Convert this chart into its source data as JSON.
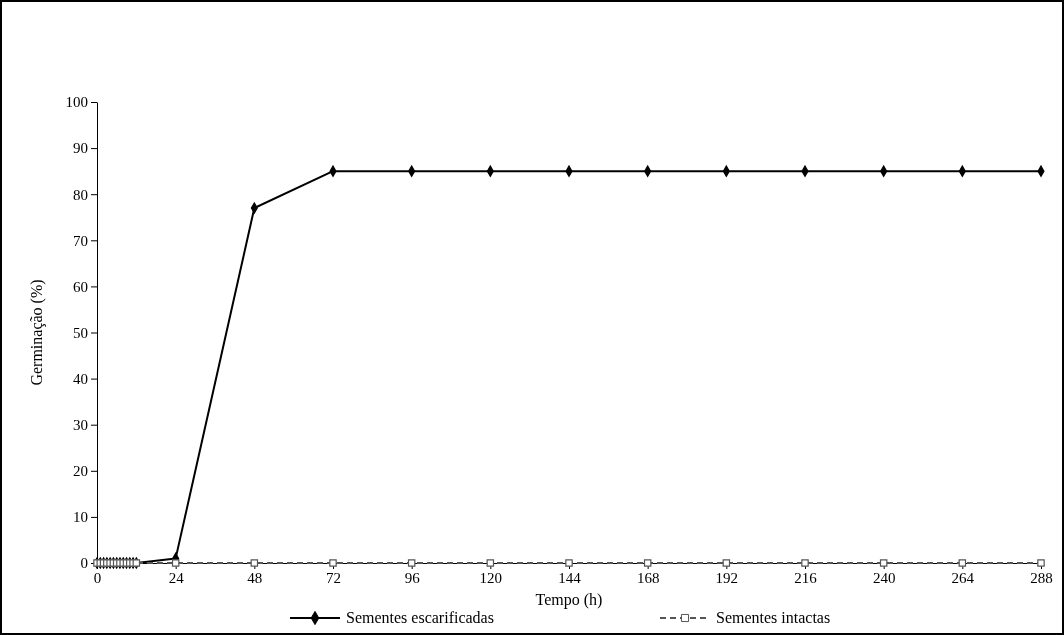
{
  "chart_data": {
    "type": "line",
    "xlabel": "Tempo (h)",
    "ylabel": "Germinação (%)",
    "xlim": [
      0,
      288
    ],
    "xticks": [
      0,
      24,
      48,
      72,
      96,
      120,
      144,
      168,
      192,
      216,
      240,
      264,
      288
    ],
    "ylim": [
      0,
      100
    ],
    "yticks": [
      0,
      10,
      20,
      30,
      40,
      50,
      60,
      70,
      80,
      90,
      100
    ],
    "grid": false,
    "legend": "bottom",
    "series": [
      {
        "name": "Sementes escarificadas",
        "color": "#000000",
        "marker": "diamond",
        "line_style": "solid",
        "x": [
          0,
          1,
          2,
          3,
          4,
          5,
          6,
          7,
          8,
          9,
          10,
          11,
          12,
          24,
          48,
          72,
          96,
          120,
          144,
          168,
          192,
          216,
          240,
          264,
          288
        ],
        "values": [
          0,
          0,
          0,
          0,
          0,
          0,
          0,
          0,
          0,
          0,
          0,
          0,
          0,
          1,
          77,
          85,
          85,
          85,
          85,
          85,
          85,
          85,
          85,
          85,
          85
        ]
      },
      {
        "name": "Sementes intactas",
        "color": "#555555",
        "marker": "square",
        "line_style": "dashed",
        "x": [
          0,
          1,
          2,
          3,
          4,
          5,
          6,
          7,
          8,
          9,
          10,
          11,
          12,
          24,
          48,
          72,
          96,
          120,
          144,
          168,
          192,
          216,
          240,
          264,
          288
        ],
        "values": [
          0,
          0,
          0,
          0,
          0,
          0,
          0,
          0,
          0,
          0,
          0,
          0,
          0,
          0,
          0,
          0,
          0,
          0,
          0,
          0,
          0,
          0,
          0,
          0,
          0
        ]
      }
    ]
  }
}
